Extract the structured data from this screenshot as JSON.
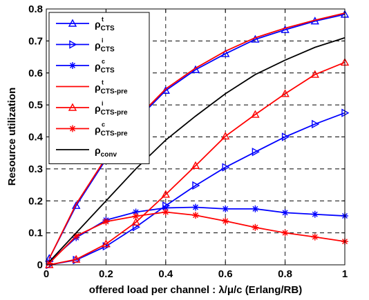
{
  "chart_data": {
    "type": "line",
    "title": "",
    "xlabel": "offered load per channel : λ/μ/c (Erlang/RB)",
    "ylabel": "Resource utilization",
    "xlim": [
      0,
      1
    ],
    "ylim": [
      0,
      0.8
    ],
    "xticks": [
      0,
      0.2,
      0.4,
      0.6,
      0.8,
      1
    ],
    "yticks": [
      0,
      0.1,
      0.2,
      0.3,
      0.4,
      0.5,
      0.6,
      0.7,
      0.8
    ],
    "xtick_labels": [
      "0",
      "0.2",
      "0.4",
      "0.6",
      "0.8",
      "1"
    ],
    "ytick_labels": [
      "0",
      "0.1",
      "0.2",
      "0.3",
      "0.4",
      "0.5",
      "0.6",
      "0.7",
      "0.8"
    ],
    "grid": true,
    "grid_style": "dashed",
    "legend_position": "top-left",
    "series": [
      {
        "name": "ρ",
        "sub": "CTS",
        "sup": "t",
        "color": "#0000ff",
        "marker": "triangle-up",
        "x": [
          0.01,
          0.1,
          0.2,
          0.3,
          0.4,
          0.5,
          0.6,
          0.7,
          0.8,
          0.9,
          1.0
        ],
        "y": [
          0.02,
          0.185,
          0.33,
          0.45,
          0.545,
          0.61,
          0.66,
          0.705,
          0.735,
          0.762,
          0.783
        ]
      },
      {
        "name": "ρ",
        "sub": "CTS",
        "sup": "i",
        "color": "#0000ff",
        "marker": "triangle-right",
        "x": [
          0.01,
          0.1,
          0.2,
          0.3,
          0.4,
          0.5,
          0.6,
          0.7,
          0.8,
          0.9,
          1.0
        ],
        "y": [
          0.0,
          0.015,
          0.058,
          0.118,
          0.185,
          0.248,
          0.305,
          0.353,
          0.4,
          0.44,
          0.475
        ]
      },
      {
        "name": "ρ",
        "sub": "CTS",
        "sup": "c",
        "color": "#0000ff",
        "marker": "star",
        "x": [
          0.01,
          0.1,
          0.2,
          0.3,
          0.4,
          0.5,
          0.6,
          0.7,
          0.8,
          0.9,
          1.0
        ],
        "y": [
          0.01,
          0.085,
          0.14,
          0.165,
          0.178,
          0.18,
          0.175,
          0.175,
          0.163,
          0.158,
          0.153
        ]
      },
      {
        "name": "ρ",
        "sub": "CTS-pre",
        "sup": "t",
        "color": "#ff0000",
        "marker": "none",
        "x": [
          0.01,
          0.1,
          0.2,
          0.3,
          0.4,
          0.5,
          0.6,
          0.7,
          0.8,
          0.9,
          1.0
        ],
        "y": [
          0.02,
          0.19,
          0.335,
          0.455,
          0.55,
          0.615,
          0.668,
          0.71,
          0.74,
          0.765,
          0.787
        ]
      },
      {
        "name": "ρ",
        "sub": "CTS-pre",
        "sup": "i",
        "color": "#ff0000",
        "marker": "triangle-up",
        "x": [
          0.01,
          0.1,
          0.2,
          0.3,
          0.4,
          0.5,
          0.6,
          0.7,
          0.8,
          0.9,
          1.0
        ],
        "y": [
          0.0,
          0.017,
          0.065,
          0.133,
          0.22,
          0.31,
          0.402,
          0.47,
          0.535,
          0.595,
          0.633
        ]
      },
      {
        "name": "ρ",
        "sub": "CTS-pre",
        "sup": "c",
        "color": "#ff0000",
        "marker": "star",
        "x": [
          0.01,
          0.1,
          0.2,
          0.3,
          0.4,
          0.5,
          0.6,
          0.7,
          0.8,
          0.9,
          1.0
        ],
        "y": [
          0.005,
          0.09,
          0.135,
          0.152,
          0.165,
          0.155,
          0.137,
          0.117,
          0.1,
          0.087,
          0.073
        ]
      },
      {
        "name": "ρ",
        "sub": "conv",
        "sup": "",
        "color": "#000000",
        "marker": "none",
        "x": [
          0.01,
          0.1,
          0.2,
          0.3,
          0.4,
          0.5,
          0.6,
          0.7,
          0.8,
          0.9,
          1.0
        ],
        "y": [
          0.01,
          0.1,
          0.2,
          0.3,
          0.39,
          0.465,
          0.535,
          0.595,
          0.64,
          0.68,
          0.71
        ]
      }
    ]
  }
}
